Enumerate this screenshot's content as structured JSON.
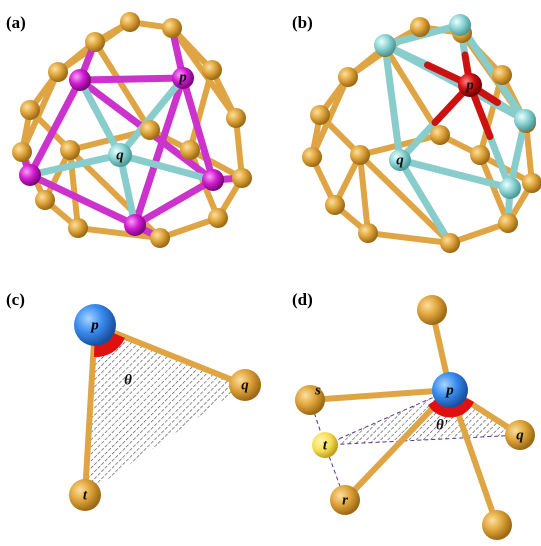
{
  "panels": [
    {
      "label": "(a)",
      "atoms": [
        "p",
        "q"
      ]
    },
    {
      "label": "(b)",
      "atoms": [
        "p",
        "q"
      ]
    },
    {
      "label": "(c)",
      "atoms": [
        "p",
        "θ",
        "q",
        "t"
      ]
    },
    {
      "label": "(d)",
      "atoms": [
        "p",
        "s",
        "t",
        "θ'",
        "q",
        "r"
      ]
    }
  ]
}
